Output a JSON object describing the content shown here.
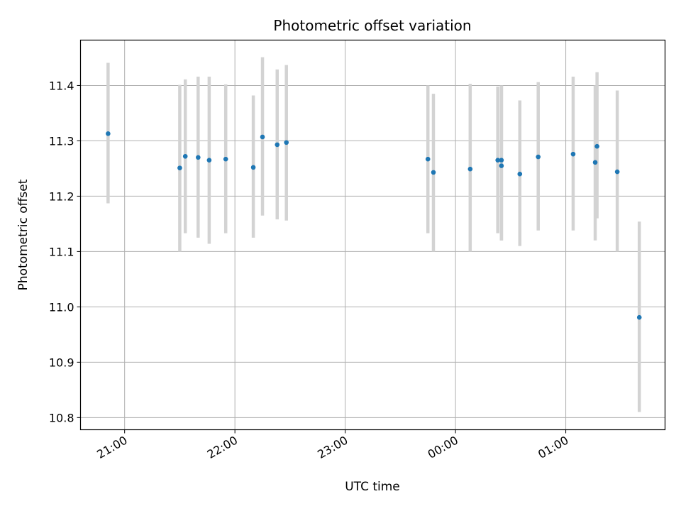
{
  "chart_data": {
    "type": "scatter",
    "title": "Photometric offset variation",
    "xlabel": "UTC time",
    "ylabel": "Photometric offset",
    "x_unit": "time (UTC, HH:MM)",
    "xlim": [
      "20:36",
      "01:54"
    ],
    "ylim": [
      10.778,
      11.482
    ],
    "x_ticks": [
      "21:00",
      "22:00",
      "23:00",
      "00:00",
      "01:00"
    ],
    "y_ticks": [
      10.8,
      10.9,
      11.0,
      11.1,
      11.2,
      11.3,
      11.4
    ],
    "y_tick_labels": [
      "10.8",
      "10.9",
      "11.0",
      "11.1",
      "11.2",
      "11.3",
      "11.4"
    ],
    "grid": true,
    "point_color": "#1f77b4",
    "errorbar_color": "#d3d3d3",
    "points": [
      {
        "t": "20:51",
        "y": 11.313,
        "lo": 11.187,
        "hi": 11.441
      },
      {
        "t": "21:30",
        "y": 11.251,
        "lo": 11.1,
        "hi": 11.401
      },
      {
        "t": "21:33",
        "y": 11.272,
        "lo": 11.133,
        "hi": 11.411
      },
      {
        "t": "21:40",
        "y": 11.27,
        "lo": 11.125,
        "hi": 11.416
      },
      {
        "t": "21:46",
        "y": 11.265,
        "lo": 11.114,
        "hi": 11.416
      },
      {
        "t": "21:55",
        "y": 11.267,
        "lo": 11.133,
        "hi": 11.402
      },
      {
        "t": "22:10",
        "y": 11.252,
        "lo": 11.125,
        "hi": 11.382
      },
      {
        "t": "22:15",
        "y": 11.307,
        "lo": 11.165,
        "hi": 11.451
      },
      {
        "t": "22:23",
        "y": 11.293,
        "lo": 11.158,
        "hi": 11.429
      },
      {
        "t": "22:28",
        "y": 11.297,
        "lo": 11.156,
        "hi": 11.437
      },
      {
        "t": "23:45",
        "y": 11.267,
        "lo": 11.133,
        "hi": 11.4
      },
      {
        "t": "23:48",
        "y": 11.243,
        "lo": 11.1,
        "hi": 11.385
      },
      {
        "t": "00:08",
        "y": 11.249,
        "lo": 11.1,
        "hi": 11.403
      },
      {
        "t": "00:23",
        "y": 11.265,
        "lo": 11.133,
        "hi": 11.398
      },
      {
        "t": "00:25",
        "y": 11.265,
        "lo": 11.12,
        "hi": 11.4
      },
      {
        "t": "00:25",
        "y": 11.255,
        "lo": 11.12,
        "hi": 11.4
      },
      {
        "t": "00:35",
        "y": 11.24,
        "lo": 11.11,
        "hi": 11.373
      },
      {
        "t": "00:45",
        "y": 11.271,
        "lo": 11.138,
        "hi": 11.406
      },
      {
        "t": "01:04",
        "y": 11.276,
        "lo": 11.138,
        "hi": 11.416
      },
      {
        "t": "01:16",
        "y": 11.261,
        "lo": 11.12,
        "hi": 11.4
      },
      {
        "t": "01:17",
        "y": 11.29,
        "lo": 11.16,
        "hi": 11.424
      },
      {
        "t": "01:28",
        "y": 11.244,
        "lo": 11.1,
        "hi": 11.391
      },
      {
        "t": "01:40",
        "y": 10.981,
        "lo": 10.81,
        "hi": 11.154
      }
    ]
  }
}
